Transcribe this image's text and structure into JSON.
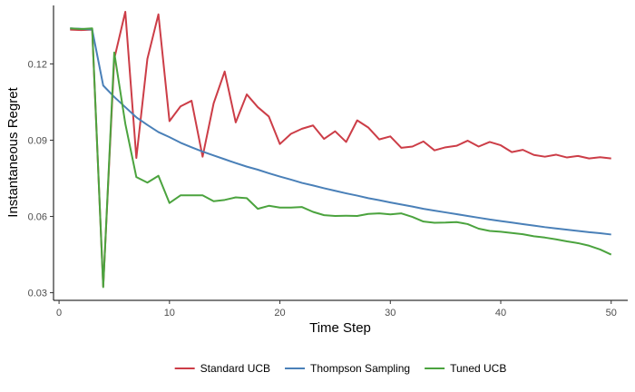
{
  "chart_data": {
    "type": "line",
    "title": "",
    "xlabel": "Time Step",
    "ylabel": "Instantaneous Regret",
    "xlim": [
      -0.5,
      51.5
    ],
    "ylim": [
      0.027,
      0.143
    ],
    "x_ticks": [
      0,
      10,
      20,
      30,
      40,
      50
    ],
    "y_ticks": [
      0.03,
      0.06,
      0.09,
      0.12
    ],
    "y_tick_labels": [
      "0.03",
      "0.06",
      "0.09",
      "0.12"
    ],
    "grid": false,
    "legend_position": "bottom",
    "x": [
      1,
      2,
      3,
      4,
      5,
      6,
      7,
      8,
      9,
      10,
      11,
      12,
      13,
      14,
      15,
      16,
      17,
      18,
      19,
      20,
      21,
      22,
      23,
      24,
      25,
      26,
      27,
      28,
      29,
      30,
      31,
      32,
      33,
      34,
      35,
      36,
      37,
      38,
      39,
      40,
      41,
      42,
      43,
      44,
      45,
      46,
      47,
      48,
      49,
      50
    ],
    "series": [
      {
        "name": "Standard UCB",
        "color": "#cc3d47",
        "values": [
          0.1335,
          0.1333,
          0.1335,
          0.0325,
          0.122,
          0.1405,
          0.083,
          0.122,
          0.1395,
          0.0975,
          0.1033,
          0.1055,
          0.0835,
          0.1045,
          0.117,
          0.097,
          0.108,
          0.103,
          0.0993,
          0.0885,
          0.0925,
          0.0945,
          0.0958,
          0.0905,
          0.0935,
          0.0893,
          0.0978,
          0.095,
          0.0903,
          0.0915,
          0.087,
          0.0875,
          0.0895,
          0.086,
          0.0872,
          0.0878,
          0.0898,
          0.0875,
          0.0893,
          0.088,
          0.0853,
          0.0862,
          0.0842,
          0.0835,
          0.0843,
          0.0832,
          0.0838,
          0.0828,
          0.0833,
          0.0828
        ]
      },
      {
        "name": "Thompson Sampling",
        "color": "#4a80b8",
        "values": [
          0.134,
          0.1338,
          0.1335,
          0.1115,
          0.107,
          0.103,
          0.099,
          0.096,
          0.0932,
          0.0912,
          0.089,
          0.0872,
          0.0855,
          0.084,
          0.0825,
          0.081,
          0.0796,
          0.0784,
          0.077,
          0.0757,
          0.0745,
          0.0732,
          0.0722,
          0.0711,
          0.0701,
          0.0691,
          0.0682,
          0.0672,
          0.0664,
          0.0655,
          0.0647,
          0.0639,
          0.063,
          0.0623,
          0.0616,
          0.0609,
          0.0602,
          0.0595,
          0.0588,
          0.0582,
          0.0576,
          0.057,
          0.0564,
          0.0558,
          0.0553,
          0.0548,
          0.0543,
          0.0538,
          0.0534,
          0.0529
        ]
      },
      {
        "name": "Tuned UCB",
        "color": "#4ba33e",
        "values": [
          0.134,
          0.1337,
          0.134,
          0.0322,
          0.1245,
          0.0965,
          0.0755,
          0.0733,
          0.076,
          0.0653,
          0.0683,
          0.0683,
          0.0683,
          0.066,
          0.0665,
          0.0675,
          0.0672,
          0.063,
          0.0642,
          0.0635,
          0.0635,
          0.0637,
          0.0618,
          0.0605,
          0.0602,
          0.0603,
          0.0602,
          0.061,
          0.0612,
          0.0608,
          0.0612,
          0.0598,
          0.058,
          0.0575,
          0.0576,
          0.0578,
          0.057,
          0.0552,
          0.0543,
          0.054,
          0.0535,
          0.053,
          0.0522,
          0.0517,
          0.051,
          0.0502,
          0.0495,
          0.0485,
          0.047,
          0.045
        ]
      }
    ]
  }
}
